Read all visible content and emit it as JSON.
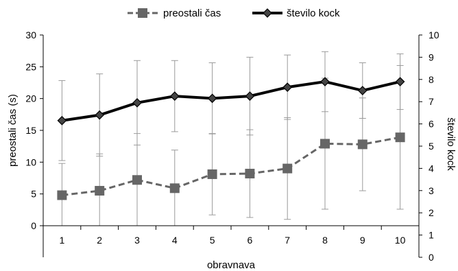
{
  "chart_data": {
    "type": "line",
    "xlabel": "obravnava",
    "ylabel_left": "preostali čas (s)",
    "ylabel_right": "število kock",
    "categories": [
      "1",
      "2",
      "3",
      "4",
      "5",
      "6",
      "7",
      "8",
      "9",
      "10"
    ],
    "ylim_left": [
      0,
      30
    ],
    "yticks_left": [
      0,
      5,
      10,
      15,
      20,
      25,
      30
    ],
    "ylim_right": [
      0,
      10
    ],
    "yticks_right": [
      0,
      1,
      2,
      3,
      4,
      5,
      6,
      7,
      8,
      9,
      10
    ],
    "grid": false,
    "legend_position": "top",
    "series": [
      {
        "name": "preostali čas",
        "axis": "left",
        "style": "dashed",
        "marker": "square",
        "color": "#666666",
        "values": [
          4.8,
          5.5,
          7.2,
          5.9,
          8.1,
          8.2,
          9.0,
          12.9,
          12.8,
          13.9
        ],
        "error": [
          5.0,
          5.8,
          7.3,
          6.0,
          6.4,
          6.9,
          8.0,
          10.3,
          7.3,
          11.3
        ]
      },
      {
        "name": "število kock",
        "axis": "right",
        "style": "solid",
        "marker": "diamond",
        "color": "#000000",
        "values": [
          6.15,
          6.4,
          6.95,
          7.25,
          7.15,
          7.25,
          7.65,
          7.9,
          7.5,
          7.9
        ],
        "error": [
          1.8,
          1.85,
          1.9,
          1.6,
          1.6,
          1.75,
          1.45,
          1.35,
          1.25,
          1.25
        ]
      }
    ]
  }
}
